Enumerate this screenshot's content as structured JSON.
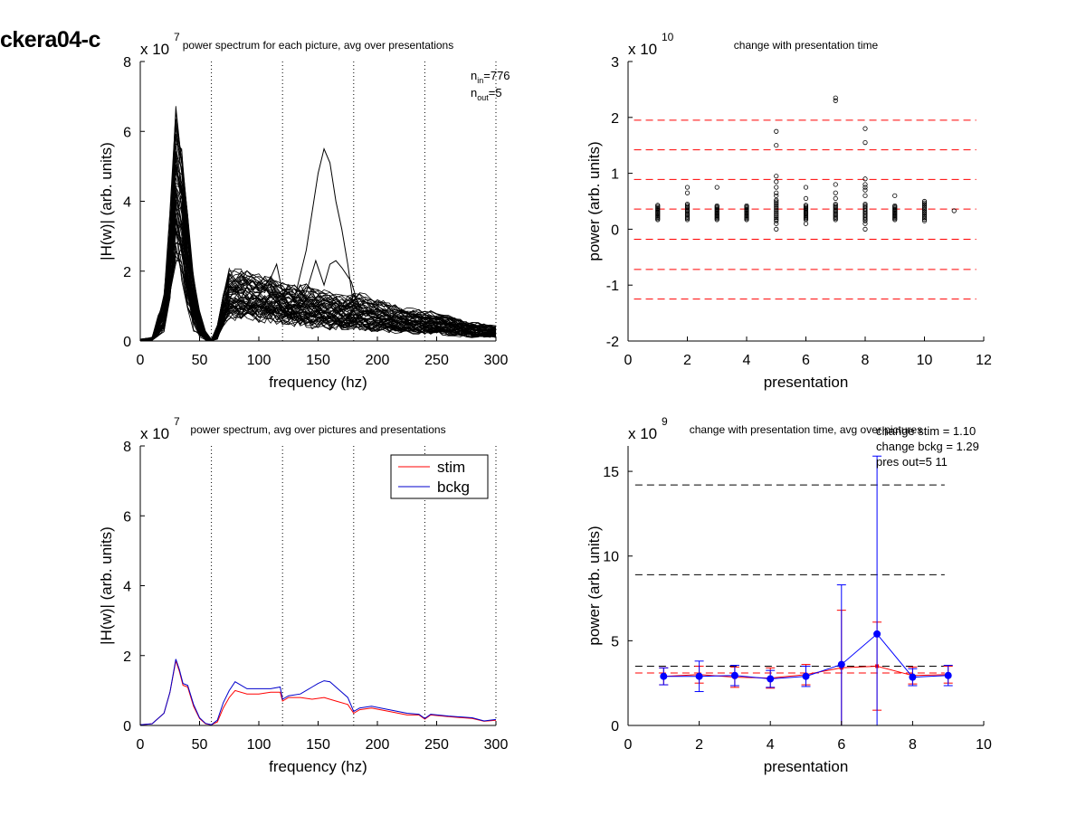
{
  "figure_title": "ckera04-c",
  "chart_data": [
    {
      "id": "tl",
      "type": "line",
      "title": "power spectrum for each picture, avg over presentations",
      "xlabel": "frequency (hz)",
      "ylabel": "|H(w)| (arb. units)",
      "exponent_base": "x 10",
      "exponent_power": "7",
      "xlim": [
        0,
        300
      ],
      "ylim": [
        0,
        8
      ],
      "xticks": [
        0,
        50,
        100,
        150,
        200,
        250,
        300
      ],
      "yticks": [
        0,
        2,
        4,
        6,
        8
      ],
      "vlines": [
        60,
        120,
        180,
        240,
        300
      ],
      "annotations": [
        "n_in=776",
        "n_out=5"
      ],
      "annotation_parts": {
        "n_in_sub": "in",
        "n_in_val": "=776",
        "n_out_sub": "out",
        "n_out_val": "=5"
      },
      "n_traces": 60,
      "envelope": {
        "x": [
          0,
          10,
          20,
          25,
          30,
          35,
          40,
          45,
          50,
          55,
          60,
          65,
          70,
          75,
          80,
          90,
          100,
          110,
          120,
          130,
          140,
          150,
          160,
          170,
          180,
          200,
          220,
          240,
          260,
          280,
          300
        ],
        "low": [
          0,
          0.02,
          0.2,
          1.0,
          2.2,
          1.6,
          0.8,
          0.3,
          0.1,
          0.02,
          0,
          0.05,
          0.4,
          0.55,
          0.6,
          0.6,
          0.55,
          0.5,
          0.45,
          0.4,
          0.38,
          0.35,
          0.32,
          0.3,
          0.28,
          0.25,
          0.22,
          0.18,
          0.15,
          0.1,
          0.1
        ],
        "high": [
          0.05,
          0.1,
          1.2,
          3.5,
          6.2,
          5.5,
          3.5,
          1.8,
          0.8,
          0.25,
          0.05,
          0.4,
          1.3,
          1.9,
          1.9,
          1.9,
          1.8,
          1.8,
          1.6,
          1.5,
          1.5,
          1.4,
          1.3,
          1.2,
          1.3,
          1.1,
          0.9,
          0.8,
          0.7,
          0.5,
          0.4
        ]
      },
      "outliers": [
        {
          "x": [
            120,
            130,
            140,
            150,
            155,
            160,
            165,
            170,
            175,
            180
          ],
          "y": [
            0.8,
            1.2,
            2.6,
            4.8,
            5.5,
            5.1,
            4.0,
            3.2,
            2.2,
            1.0
          ]
        },
        {
          "x": [
            120,
            130,
            140,
            148,
            155,
            160,
            165,
            170,
            178,
            185
          ],
          "y": [
            0.7,
            0.9,
            1.4,
            2.3,
            1.6,
            2.2,
            2.3,
            2.1,
            1.7,
            0.9
          ]
        },
        {
          "x": [
            95,
            105,
            110,
            115,
            120,
            125,
            130
          ],
          "y": [
            1.0,
            1.6,
            1.8,
            2.2,
            1.4,
            1.0,
            0.8
          ]
        }
      ]
    },
    {
      "id": "tr",
      "type": "scatter",
      "title": "change with presentation time",
      "xlabel": "presentation",
      "ylabel": "power (arb. units)",
      "exponent_base": "x 10",
      "exponent_power": "10",
      "xlim": [
        0,
        12
      ],
      "ylim": [
        -2,
        3
      ],
      "xticks": [
        0,
        2,
        4,
        6,
        8,
        10,
        12
      ],
      "yticks": [
        -2,
        -1,
        0,
        1,
        2,
        3
      ],
      "dashed_lines": [
        1.95,
        1.42,
        0.89,
        0.36,
        -0.18,
        -0.72,
        -1.25
      ],
      "dashed_xrange": [
        0,
        12
      ],
      "columns": [
        {
          "x": 1,
          "low": 0.17,
          "high": 0.43,
          "extra": []
        },
        {
          "x": 2,
          "low": 0.17,
          "high": 0.45,
          "extra": [
            0.65,
            0.75
          ]
        },
        {
          "x": 3,
          "low": 0.17,
          "high": 0.42,
          "extra": [
            0.75
          ]
        },
        {
          "x": 4,
          "low": 0.17,
          "high": 0.42,
          "extra": []
        },
        {
          "x": 5,
          "low": 0.15,
          "high": 0.52,
          "extra": [
            0.0,
            0.1,
            0.6,
            0.65,
            0.75,
            0.85,
            0.95,
            1.5,
            1.75
          ]
        },
        {
          "x": 6,
          "low": 0.17,
          "high": 0.43,
          "extra": [
            0.1,
            0.55,
            0.75
          ]
        },
        {
          "x": 7,
          "low": 0.17,
          "high": 0.45,
          "extra": [
            0.55,
            0.65,
            0.8,
            2.3,
            2.35
          ]
        },
        {
          "x": 8,
          "low": 0.15,
          "high": 0.45,
          "extra": [
            0.0,
            0.1,
            0.6,
            0.7,
            0.75,
            0.8,
            0.9,
            1.55,
            1.8
          ]
        },
        {
          "x": 9,
          "low": 0.17,
          "high": 0.42,
          "extra": [
            0.6
          ]
        },
        {
          "x": 10,
          "low": 0.15,
          "high": 0.5,
          "extra": []
        },
        {
          "x": 11,
          "low": 0.33,
          "high": 0.33,
          "extra": []
        }
      ]
    },
    {
      "id": "bl",
      "type": "line",
      "title": "power spectrum, avg over pictures and presentations",
      "xlabel": "frequency (hz)",
      "ylabel": "|H(w)| (arb. units)",
      "exponent_base": "x 10",
      "exponent_power": "7",
      "xlim": [
        0,
        300
      ],
      "ylim": [
        0,
        8
      ],
      "xticks": [
        0,
        50,
        100,
        150,
        200,
        250,
        300
      ],
      "yticks": [
        0,
        2,
        4,
        6,
        8
      ],
      "vlines": [
        60,
        120,
        180,
        240,
        300
      ],
      "legend": {
        "position": "top-right",
        "entries": [
          "stim",
          "bckg"
        ]
      },
      "series": [
        {
          "name": "stim",
          "color": "#ff0000",
          "x": [
            0,
            10,
            20,
            25,
            30,
            33,
            36,
            40,
            45,
            50,
            55,
            60,
            65,
            70,
            75,
            80,
            90,
            100,
            110,
            118,
            120,
            125,
            135,
            145,
            155,
            165,
            175,
            180,
            185,
            195,
            210,
            225,
            235,
            240,
            245,
            260,
            280,
            290,
            300
          ],
          "y": [
            0.02,
            0.05,
            0.35,
            0.95,
            1.85,
            1.55,
            1.15,
            1.1,
            0.55,
            0.2,
            0.05,
            0.02,
            0.1,
            0.5,
            0.8,
            1.0,
            0.9,
            0.9,
            0.95,
            0.95,
            0.7,
            0.8,
            0.8,
            0.75,
            0.8,
            0.7,
            0.6,
            0.35,
            0.45,
            0.5,
            0.4,
            0.3,
            0.3,
            0.18,
            0.3,
            0.25,
            0.2,
            0.12,
            0.15
          ]
        },
        {
          "name": "bckg",
          "color": "#0000cc",
          "x": [
            0,
            10,
            20,
            25,
            30,
            33,
            36,
            40,
            45,
            50,
            55,
            60,
            65,
            70,
            75,
            80,
            90,
            100,
            110,
            118,
            120,
            125,
            135,
            145,
            150,
            155,
            160,
            165,
            175,
            180,
            185,
            195,
            210,
            225,
            235,
            240,
            245,
            260,
            280,
            290,
            300
          ],
          "y": [
            0.02,
            0.05,
            0.35,
            0.95,
            1.9,
            1.6,
            1.2,
            1.15,
            0.6,
            0.22,
            0.06,
            0.02,
            0.15,
            0.65,
            1.0,
            1.25,
            1.05,
            1.05,
            1.05,
            1.1,
            0.75,
            0.85,
            0.9,
            1.1,
            1.2,
            1.28,
            1.25,
            1.1,
            0.8,
            0.4,
            0.5,
            0.55,
            0.45,
            0.35,
            0.32,
            0.2,
            0.32,
            0.27,
            0.22,
            0.13,
            0.17
          ]
        }
      ]
    },
    {
      "id": "br",
      "type": "line",
      "title": "change with presentation time, avg over pictures",
      "xlabel": "presentation",
      "ylabel": "power (arb. units)",
      "exponent_base": "x 10",
      "exponent_power": "9",
      "xlim": [
        0,
        10
      ],
      "ylim": [
        0,
        16.5
      ],
      "xticks": [
        0,
        2,
        4,
        6,
        8,
        10
      ],
      "yticks": [
        0,
        5,
        10,
        15
      ],
      "annotations": [
        "change stim = 1.10",
        "change bckg = 1.29",
        "pres out=5 11"
      ],
      "dashed_black": [
        14.2,
        8.9,
        3.5
      ],
      "dashed_red": [
        3.1
      ],
      "dashed_xrange": [
        0,
        9
      ],
      "series": [
        {
          "name": "stim",
          "color": "#ff0000",
          "x": [
            1,
            2,
            3,
            4,
            5,
            6,
            7,
            8,
            9
          ],
          "y": [
            2.9,
            3.0,
            2.85,
            2.8,
            3.0,
            3.4,
            3.5,
            2.95,
            3.0
          ],
          "err": [
            0.5,
            0.5,
            0.6,
            0.6,
            0.6,
            3.4,
            2.6,
            0.5,
            0.5
          ]
        },
        {
          "name": "bckg",
          "color": "#0000ff",
          "x": [
            1,
            2,
            3,
            4,
            5,
            6,
            7,
            8,
            9
          ],
          "y": [
            2.9,
            2.9,
            2.95,
            2.75,
            2.9,
            3.6,
            5.4,
            2.85,
            2.95
          ],
          "err": [
            0.5,
            0.9,
            0.6,
            0.5,
            0.6,
            4.7,
            10.5,
            0.5,
            0.6
          ]
        }
      ]
    }
  ]
}
